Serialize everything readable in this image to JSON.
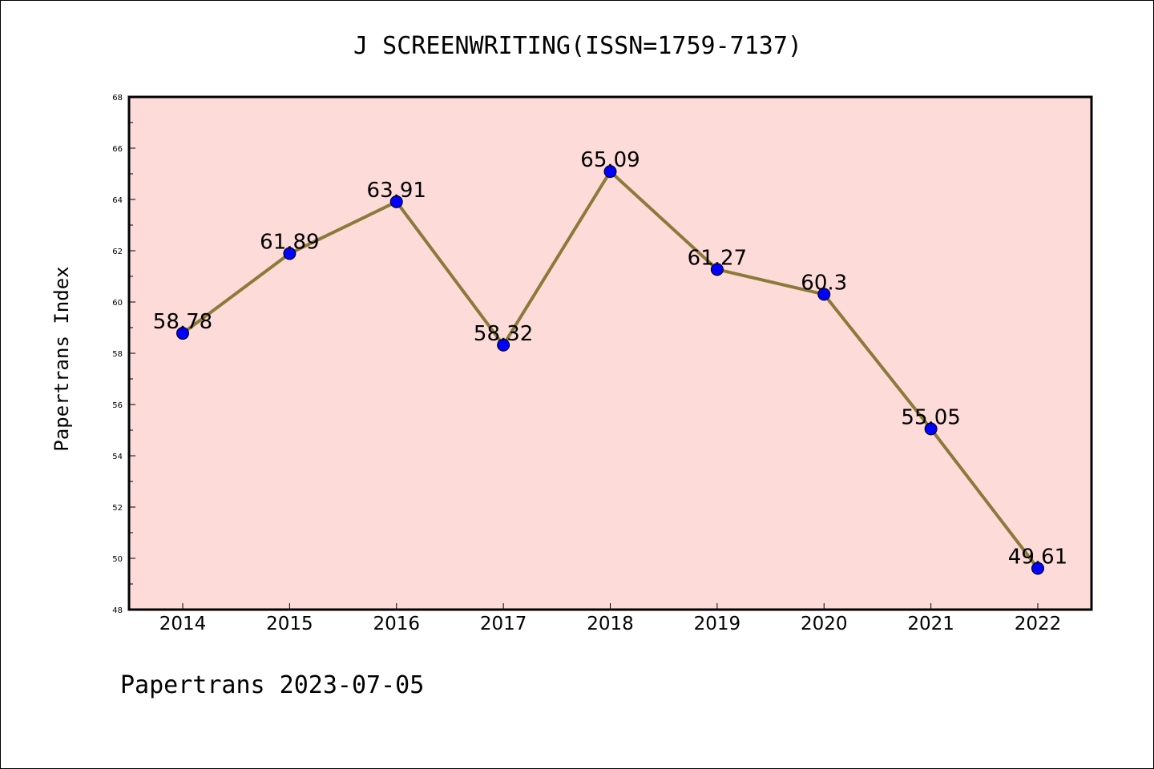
{
  "chart_data": {
    "type": "line",
    "title": "J SCREENWRITING(ISSN=1759-7137)",
    "ylabel": "Papertrans Index",
    "xlabel": "",
    "footer": "Papertrans 2023-07-05",
    "categories": [
      "2014",
      "2015",
      "2016",
      "2017",
      "2018",
      "2019",
      "2020",
      "2021",
      "2022"
    ],
    "values": [
      58.78,
      61.89,
      63.91,
      58.32,
      65.09,
      61.27,
      60.3,
      55.05,
      49.61
    ],
    "data_labels": [
      "58.78",
      "61.89",
      "63.91",
      "58.32",
      "65.09",
      "61.27",
      "60.3",
      "55.05",
      "49.61"
    ],
    "ylim": [
      48,
      68
    ],
    "yticks": [
      48,
      50,
      52,
      54,
      56,
      58,
      60,
      62,
      64,
      66,
      68
    ],
    "grid": false,
    "colors": {
      "plot_background": "#fddbd9",
      "line": "#8b7a3a",
      "marker": "#0000ff"
    }
  }
}
